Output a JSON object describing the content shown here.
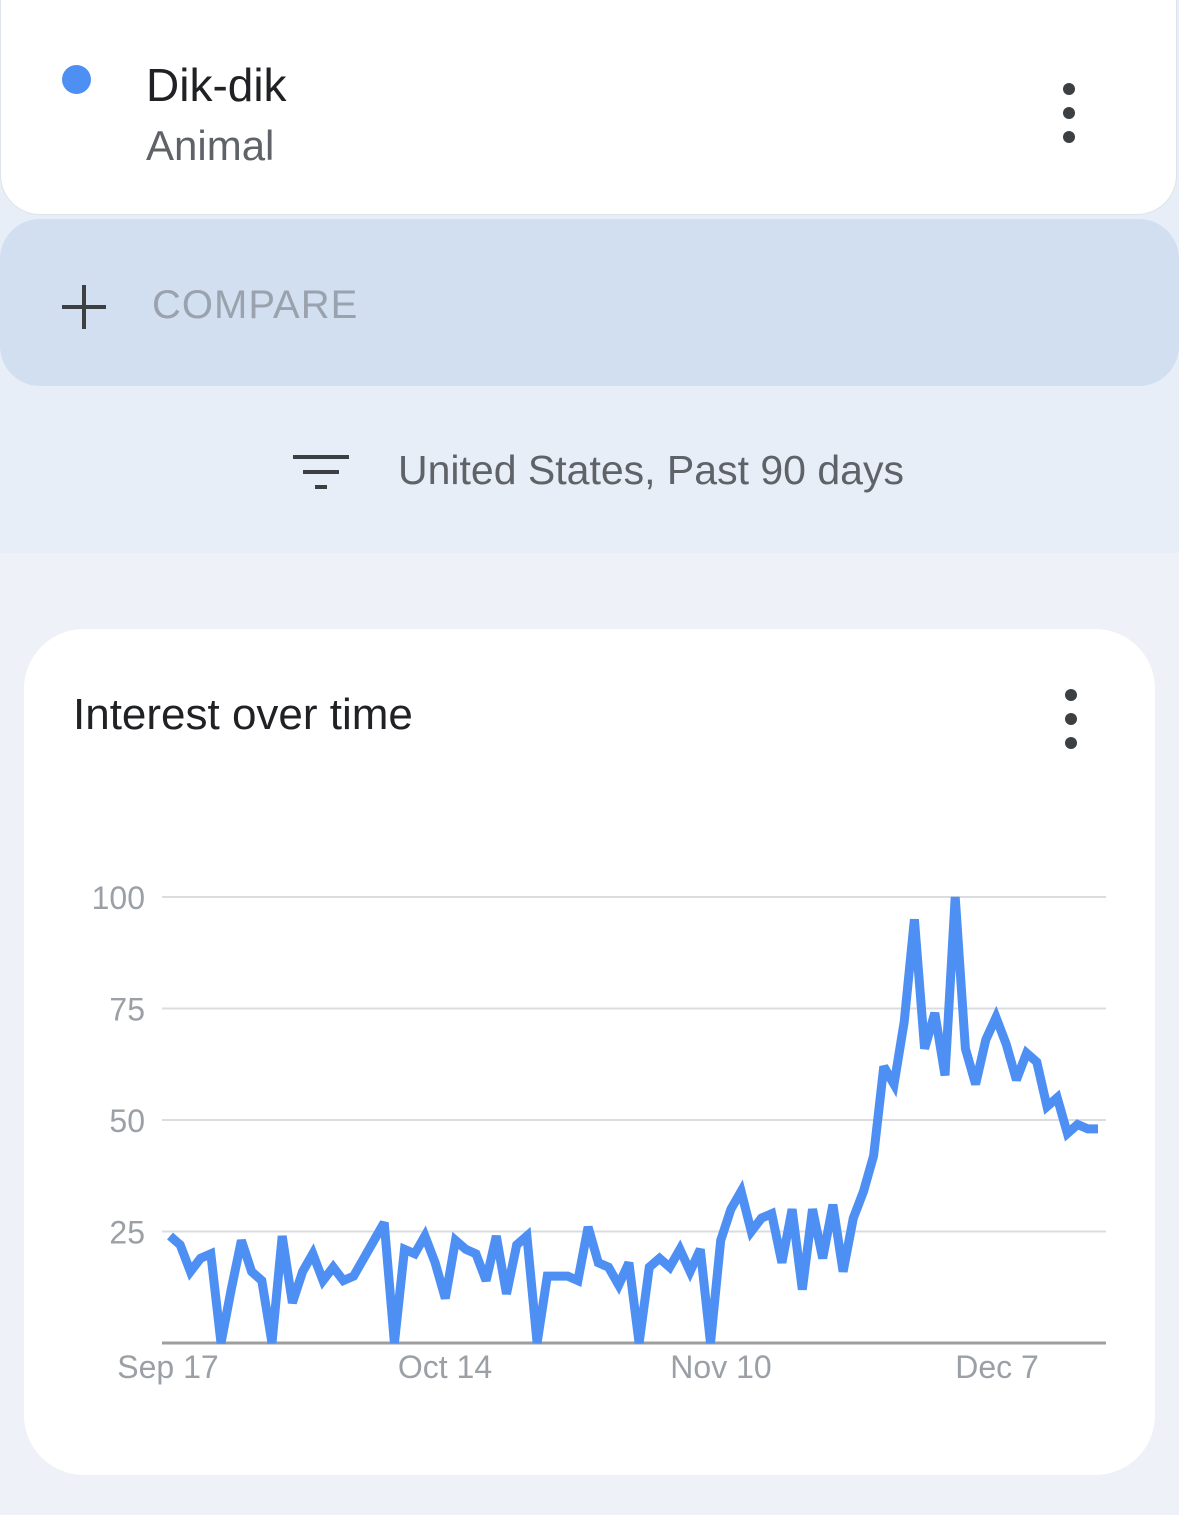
{
  "term": {
    "name": "Dik-dik",
    "type": "Animal",
    "color": "#4e8ff3",
    "menu_icon": "more-vert-icon"
  },
  "compare": {
    "label": "COMPARE",
    "icon": "plus-icon"
  },
  "filter": {
    "icon": "filter-icon",
    "text": "United States, Past 90 days"
  },
  "chart_card": {
    "title": "Interest over time",
    "menu_icon": "more-vert-icon"
  },
  "chart_data": {
    "type": "line",
    "title": "Interest over time",
    "ylim": [
      0,
      100
    ],
    "yticks": [
      "25",
      "50",
      "75",
      "100"
    ],
    "xticks": [
      "Sep 17",
      "Oct 14",
      "Nov 10",
      "Dec 7"
    ],
    "grid": true,
    "series": [
      {
        "color": "#4e8ff3",
        "values": [
          24,
          22,
          16,
          19,
          20,
          0,
          12,
          23,
          16,
          14,
          0,
          24,
          9,
          16,
          20,
          14,
          17,
          14,
          15,
          19,
          23,
          27,
          0,
          21,
          20,
          24,
          18,
          10,
          23,
          21,
          20,
          14,
          24,
          11,
          22,
          24,
          0,
          15,
          15,
          15,
          14,
          26,
          18,
          17,
          13,
          18,
          0,
          17,
          19,
          17,
          21,
          16,
          21,
          0,
          23,
          30,
          34,
          25,
          28,
          29,
          18,
          30,
          12,
          30,
          19,
          31,
          16,
          28,
          34,
          42,
          62,
          58,
          72,
          95,
          66,
          74,
          60,
          100,
          66,
          58,
          68,
          73,
          67,
          59,
          65,
          63,
          53,
          55,
          47,
          49,
          48,
          48
        ]
      }
    ]
  }
}
